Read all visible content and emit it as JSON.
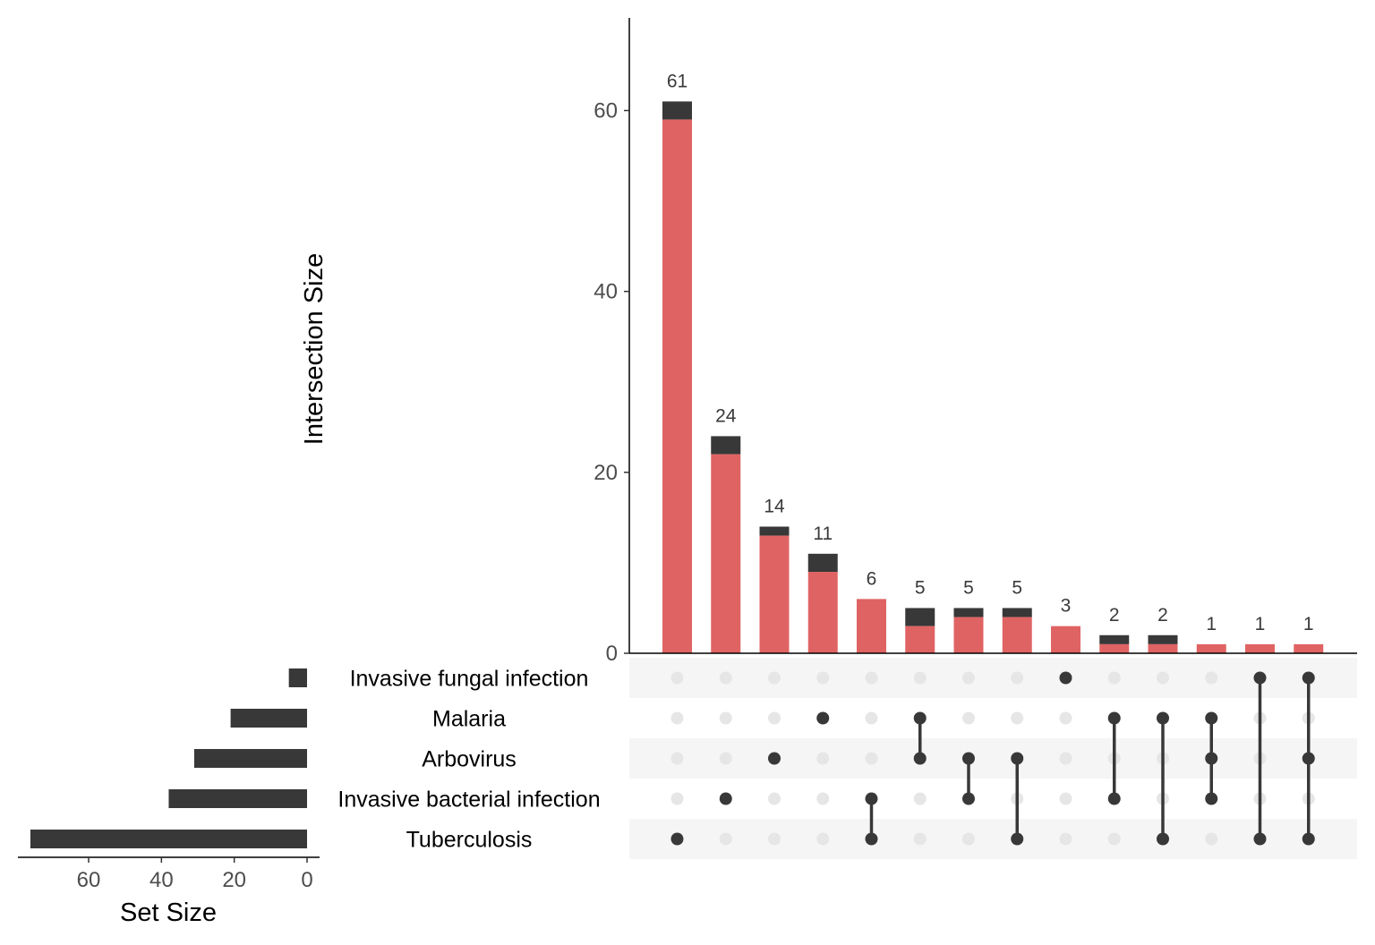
{
  "chart_data": {
    "type": "upset",
    "sets": [
      "Invasive fungal infection",
      "Malaria",
      "Arbovirus",
      "Invasive bacterial infection",
      "Tuberculosis"
    ],
    "set_sizes": [
      5,
      21,
      31,
      38,
      76
    ],
    "set_size_axis": {
      "title": "Set Size",
      "ticks": [
        60,
        40,
        20,
        0
      ],
      "reversed": true
    },
    "intersection_axis": {
      "title": "Intersection Size",
      "ticks": [
        0,
        20,
        40,
        60
      ],
      "ylim": [
        0,
        70
      ]
    },
    "intersections": [
      {
        "members": [
          "Tuberculosis"
        ],
        "total": 61,
        "red": 59
      },
      {
        "members": [
          "Invasive bacterial infection"
        ],
        "total": 24,
        "red": 22
      },
      {
        "members": [
          "Arbovirus"
        ],
        "total": 14,
        "red": 13
      },
      {
        "members": [
          "Malaria"
        ],
        "total": 11,
        "red": 9
      },
      {
        "members": [
          "Invasive bacterial infection",
          "Tuberculosis"
        ],
        "total": 6,
        "red": 6
      },
      {
        "members": [
          "Malaria",
          "Arbovirus"
        ],
        "total": 5,
        "red": 3
      },
      {
        "members": [
          "Arbovirus",
          "Invasive bacterial infection"
        ],
        "total": 5,
        "red": 4
      },
      {
        "members": [
          "Arbovirus",
          "Tuberculosis"
        ],
        "total": 5,
        "red": 4
      },
      {
        "members": [
          "Invasive fungal infection"
        ],
        "total": 3,
        "red": 3
      },
      {
        "members": [
          "Malaria",
          "Invasive bacterial infection"
        ],
        "total": 2,
        "red": 1
      },
      {
        "members": [
          "Malaria",
          "Tuberculosis"
        ],
        "total": 2,
        "red": 1
      },
      {
        "members": [
          "Malaria",
          "Arbovirus",
          "Invasive bacterial infection"
        ],
        "total": 1,
        "red": 1
      },
      {
        "members": [
          "Invasive fungal infection",
          "Tuberculosis"
        ],
        "total": 1,
        "red": 1
      },
      {
        "members": [
          "Invasive fungal infection",
          "Arbovirus",
          "Tuberculosis"
        ],
        "total": 1,
        "red": 1
      }
    ],
    "colors": {
      "highlight": "#e06363",
      "bar": "#383838",
      "dot_active": "#383838",
      "dot_inactive": "#e6e6e6",
      "stripe": "#f5f5f5"
    }
  }
}
